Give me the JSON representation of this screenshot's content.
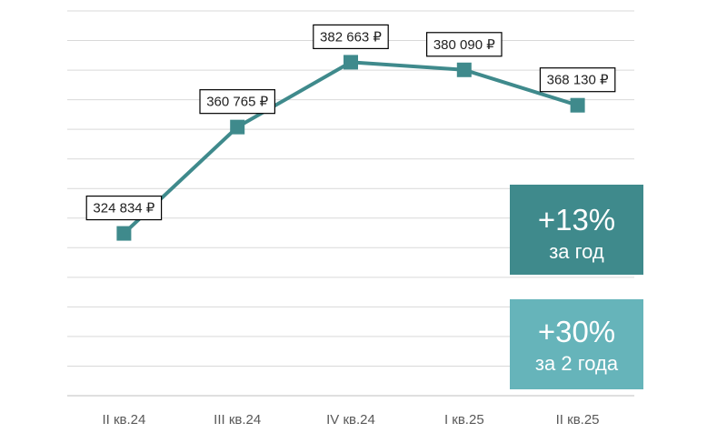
{
  "chart_data": {
    "type": "line",
    "categories": [
      "II кв.24",
      "III кв.24",
      "IV кв.24",
      "I кв.25",
      "II кв.25"
    ],
    "values": [
      324834,
      360765,
      382663,
      380090,
      368130
    ],
    "data_labels": [
      "324 834 ₽",
      "360 765 ₽",
      "382 663 ₽",
      "380 090 ₽",
      "368 130 ₽"
    ],
    "ylim": [
      270000,
      400000
    ],
    "grid": true,
    "legend": "none",
    "line_color": "#3F8A8C"
  },
  "badges": {
    "year": {
      "value": "+13%",
      "label": "за год",
      "color": "#3F8A8C"
    },
    "two_years": {
      "value": "+30%",
      "label": "за 2 года",
      "color": "#66B4BA"
    }
  }
}
